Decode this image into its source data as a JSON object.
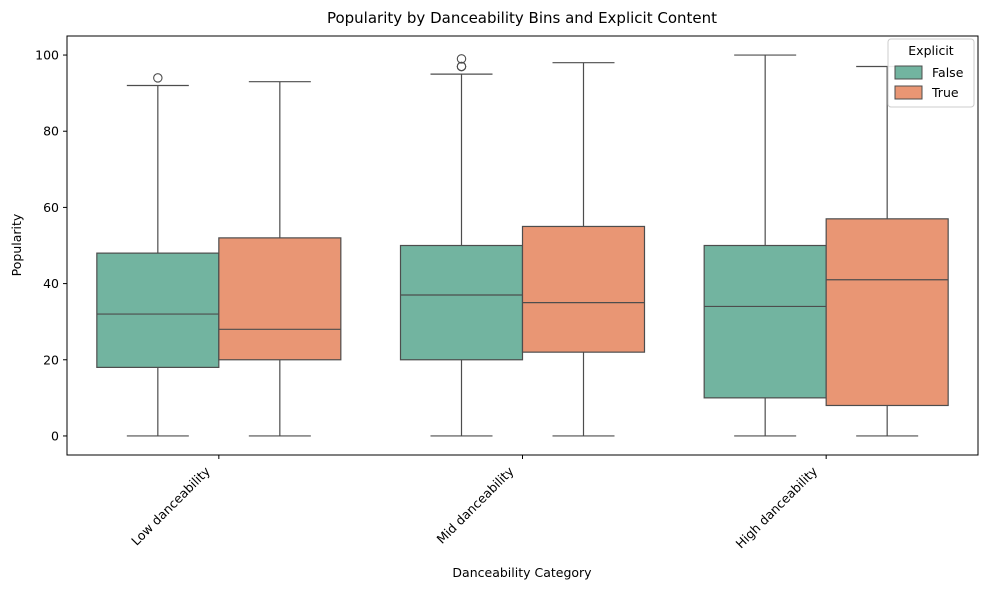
{
  "chart_data": {
    "type": "box",
    "title": "Popularity by Danceability Bins and Explicit Content",
    "xlabel": "Danceability Category",
    "ylabel": "Popularity",
    "ylim": [
      -5,
      105
    ],
    "yticks": [
      0,
      20,
      40,
      60,
      80,
      100
    ],
    "categories": [
      "Low danceability",
      "Mid danceability",
      "High danceability"
    ],
    "grid": false,
    "legend": {
      "title": "Explicit",
      "placement": "top-right"
    },
    "series": [
      {
        "name": "False",
        "color": "#72b4a0",
        "boxes": [
          {
            "whisker_low": 0,
            "q1": 18,
            "median": 32,
            "q3": 48,
            "whisker_high": 92,
            "outliers": [
              94
            ]
          },
          {
            "whisker_low": 0,
            "q1": 20,
            "median": 37,
            "q3": 50,
            "whisker_high": 95,
            "outliers": [
              97,
              97,
              99
            ]
          },
          {
            "whisker_low": 0,
            "q1": 10,
            "median": 34,
            "q3": 50,
            "whisker_high": 100,
            "outliers": []
          }
        ]
      },
      {
        "name": "True",
        "color": "#e99674",
        "boxes": [
          {
            "whisker_low": 0,
            "q1": 20,
            "median": 28,
            "q3": 52,
            "whisker_high": 93,
            "outliers": []
          },
          {
            "whisker_low": 0,
            "q1": 22,
            "median": 35,
            "q3": 55,
            "whisker_high": 98,
            "outliers": []
          },
          {
            "whisker_low": 0,
            "q1": 8,
            "median": 41,
            "q3": 57,
            "whisker_high": 97,
            "outliers": []
          }
        ]
      }
    ]
  }
}
